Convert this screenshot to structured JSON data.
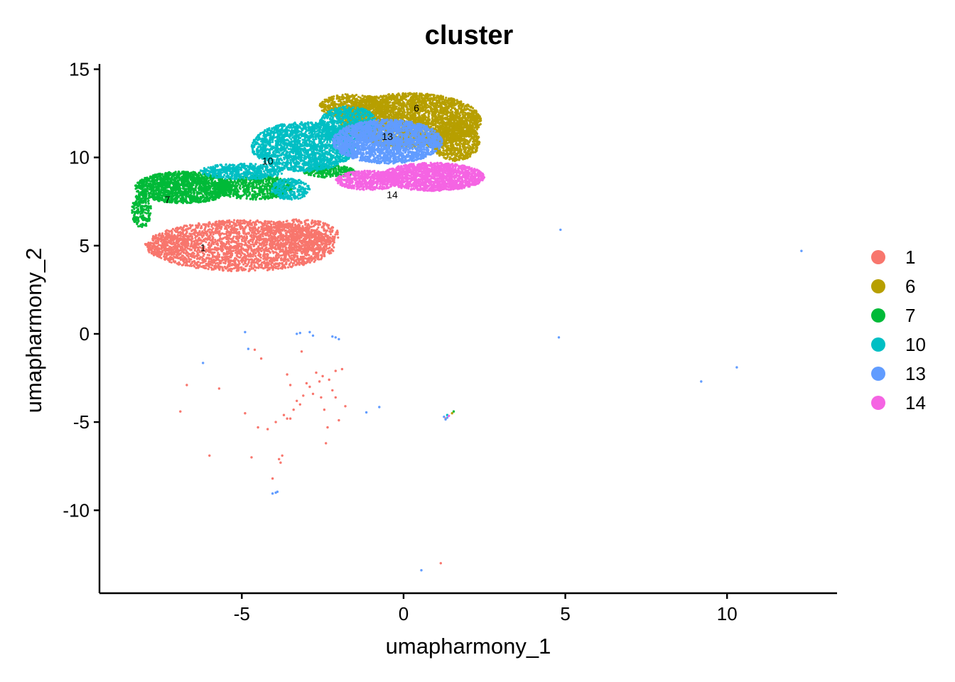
{
  "chart_data": {
    "type": "scatter",
    "title": "cluster",
    "xlabel": "umapharmony_1",
    "ylabel": "umapharmony_2",
    "xlim": [
      -9.4,
      13.4
    ],
    "ylim": [
      -14.7,
      15.3
    ],
    "xticks": [
      -5,
      0,
      5,
      10
    ],
    "xtick_labels": [
      "-5",
      "0",
      "5",
      "10"
    ],
    "yticks": [
      -10,
      -5,
      0,
      5,
      10,
      15
    ],
    "ytick_labels": [
      "-10",
      "-5",
      "0",
      "5",
      "10",
      "15"
    ],
    "grid": false,
    "legend_position": "right",
    "series": [
      {
        "name": "1",
        "color": "#F8766D",
        "regions": [
          {
            "cx": -5.0,
            "cy": 5.0,
            "rx": 2.9,
            "ry": 1.45,
            "n": 2600
          },
          {
            "cx": -3.2,
            "cy": 5.6,
            "rx": 1.2,
            "ry": 0.9,
            "n": 500
          },
          {
            "cx": -7.3,
            "cy": 5.0,
            "rx": 0.7,
            "ry": 0.7,
            "n": 200
          }
        ],
        "label": {
          "text": "1",
          "x": -6.2,
          "y": 4.9
        },
        "points": [
          [
            -6.9,
            -4.4
          ],
          [
            -6.7,
            -2.9
          ],
          [
            -6.0,
            -6.9
          ],
          [
            -5.7,
            -3.1
          ],
          [
            -4.9,
            -4.5
          ],
          [
            -4.7,
            -7.0
          ],
          [
            -4.5,
            -5.3
          ],
          [
            -4.6,
            -0.9
          ],
          [
            -4.4,
            -1.4
          ],
          [
            -4.2,
            -5.4
          ],
          [
            -4.05,
            -8.2
          ],
          [
            -3.95,
            -5.0
          ],
          [
            -3.8,
            -7.3
          ],
          [
            -3.7,
            -4.6
          ],
          [
            -3.6,
            -4.8
          ],
          [
            -3.5,
            -4.8
          ],
          [
            -3.6,
            -2.3
          ],
          [
            -3.5,
            -2.9
          ],
          [
            -3.4,
            -4.3
          ],
          [
            -3.3,
            -3.8
          ],
          [
            -3.2,
            -4.0
          ],
          [
            -3.15,
            -1.0
          ],
          [
            -3.1,
            -3.5
          ],
          [
            -3.0,
            -2.8
          ],
          [
            -2.9,
            -3.0
          ],
          [
            -2.8,
            -3.4
          ],
          [
            -2.7,
            -2.2
          ],
          [
            -2.6,
            -2.7
          ],
          [
            -2.55,
            -3.6
          ],
          [
            -2.5,
            -2.4
          ],
          [
            -2.45,
            -4.3
          ],
          [
            -2.4,
            -6.2
          ],
          [
            -2.35,
            -5.3
          ],
          [
            -2.3,
            -2.6
          ],
          [
            -2.2,
            -3.2
          ],
          [
            -2.1,
            -2.1
          ],
          [
            -2.1,
            -3.6
          ],
          [
            -2.0,
            -4.9
          ],
          [
            -1.9,
            -2.0
          ],
          [
            -1.8,
            -4.1
          ],
          [
            -3.75,
            -6.9
          ],
          [
            -3.85,
            -7.1
          ],
          [
            1.15,
            -13.0
          ],
          [
            1.3,
            -4.8
          ]
        ]
      },
      {
        "name": "6",
        "color": "#B79F00",
        "regions": [
          {
            "cx": 0.2,
            "cy": 12.1,
            "rx": 2.2,
            "ry": 1.55,
            "n": 3600
          },
          {
            "cx": 1.6,
            "cy": 10.9,
            "rx": 0.75,
            "ry": 1.1,
            "n": 800
          },
          {
            "cx": -1.6,
            "cy": 12.9,
            "rx": 1.0,
            "ry": 0.7,
            "n": 500
          }
        ],
        "label": {
          "text": "6",
          "x": 0.4,
          "y": 12.8
        },
        "points": [
          [
            1.5,
            -4.5
          ]
        ]
      },
      {
        "name": "7",
        "color": "#00BA38",
        "regions": [
          {
            "cx": -6.8,
            "cy": 8.3,
            "rx": 1.5,
            "ry": 0.9,
            "n": 1600
          },
          {
            "cx": -4.6,
            "cy": 8.3,
            "rx": 1.2,
            "ry": 0.7,
            "n": 600
          },
          {
            "cx": -8.1,
            "cy": 7.0,
            "rx": 0.3,
            "ry": 1.0,
            "n": 200
          },
          {
            "cx": -2.3,
            "cy": 9.2,
            "rx": 0.8,
            "ry": 0.35,
            "n": 250
          }
        ],
        "label": {
          "text": "7",
          "x": -7.3,
          "y": 7.6
        },
        "points": [
          [
            1.55,
            -4.4
          ]
        ]
      },
      {
        "name": "10",
        "color": "#00BFC4",
        "regions": [
          {
            "cx": -3.1,
            "cy": 10.6,
            "rx": 1.6,
            "ry": 1.4,
            "n": 2000
          },
          {
            "cx": -1.7,
            "cy": 11.9,
            "rx": 0.9,
            "ry": 1.0,
            "n": 700
          },
          {
            "cx": -5.0,
            "cy": 9.2,
            "rx": 1.3,
            "ry": 0.45,
            "n": 500
          },
          {
            "cx": -3.5,
            "cy": 8.2,
            "rx": 0.6,
            "ry": 0.6,
            "n": 250
          }
        ],
        "label": {
          "text": "10",
          "x": -4.2,
          "y": 9.8
        },
        "points": [
          [
            1.35,
            -4.6
          ]
        ]
      },
      {
        "name": "13",
        "color": "#619CFF",
        "regions": [
          {
            "cx": -0.5,
            "cy": 10.9,
            "rx": 1.7,
            "ry": 1.25,
            "n": 2400
          }
        ],
        "label": {
          "text": "13",
          "x": -0.5,
          "y": 11.2
        },
        "points": [
          [
            4.85,
            5.9
          ],
          [
            12.3,
            4.7
          ],
          [
            4.8,
            -0.2
          ],
          [
            9.2,
            -2.7
          ],
          [
            10.3,
            -1.9
          ],
          [
            -6.2,
            -1.65
          ],
          [
            -4.9,
            0.1
          ],
          [
            -4.8,
            -0.85
          ],
          [
            -3.3,
            0.0
          ],
          [
            -3.2,
            0.05
          ],
          [
            -2.9,
            0.1
          ],
          [
            -2.8,
            -0.1
          ],
          [
            -2.2,
            -0.15
          ],
          [
            -2.1,
            -0.2
          ],
          [
            -2.0,
            -0.3
          ],
          [
            -1.15,
            -4.45
          ],
          [
            -0.75,
            -4.15
          ],
          [
            -4.05,
            -9.05
          ],
          [
            -3.95,
            -9.0
          ],
          [
            -3.9,
            -8.95
          ],
          [
            1.25,
            -4.7
          ],
          [
            1.3,
            -4.85
          ],
          [
            1.35,
            -4.75
          ],
          [
            0.55,
            -13.4
          ]
        ]
      },
      {
        "name": "14",
        "color": "#F564E3",
        "regions": [
          {
            "cx": 0.9,
            "cy": 8.9,
            "rx": 1.6,
            "ry": 0.8,
            "n": 1700
          },
          {
            "cx": -1.1,
            "cy": 8.7,
            "rx": 1.0,
            "ry": 0.55,
            "n": 600
          }
        ],
        "label": {
          "text": "14",
          "x": -0.35,
          "y": 7.9
        },
        "points": [
          [
            1.4,
            -4.65
          ]
        ]
      }
    ]
  }
}
